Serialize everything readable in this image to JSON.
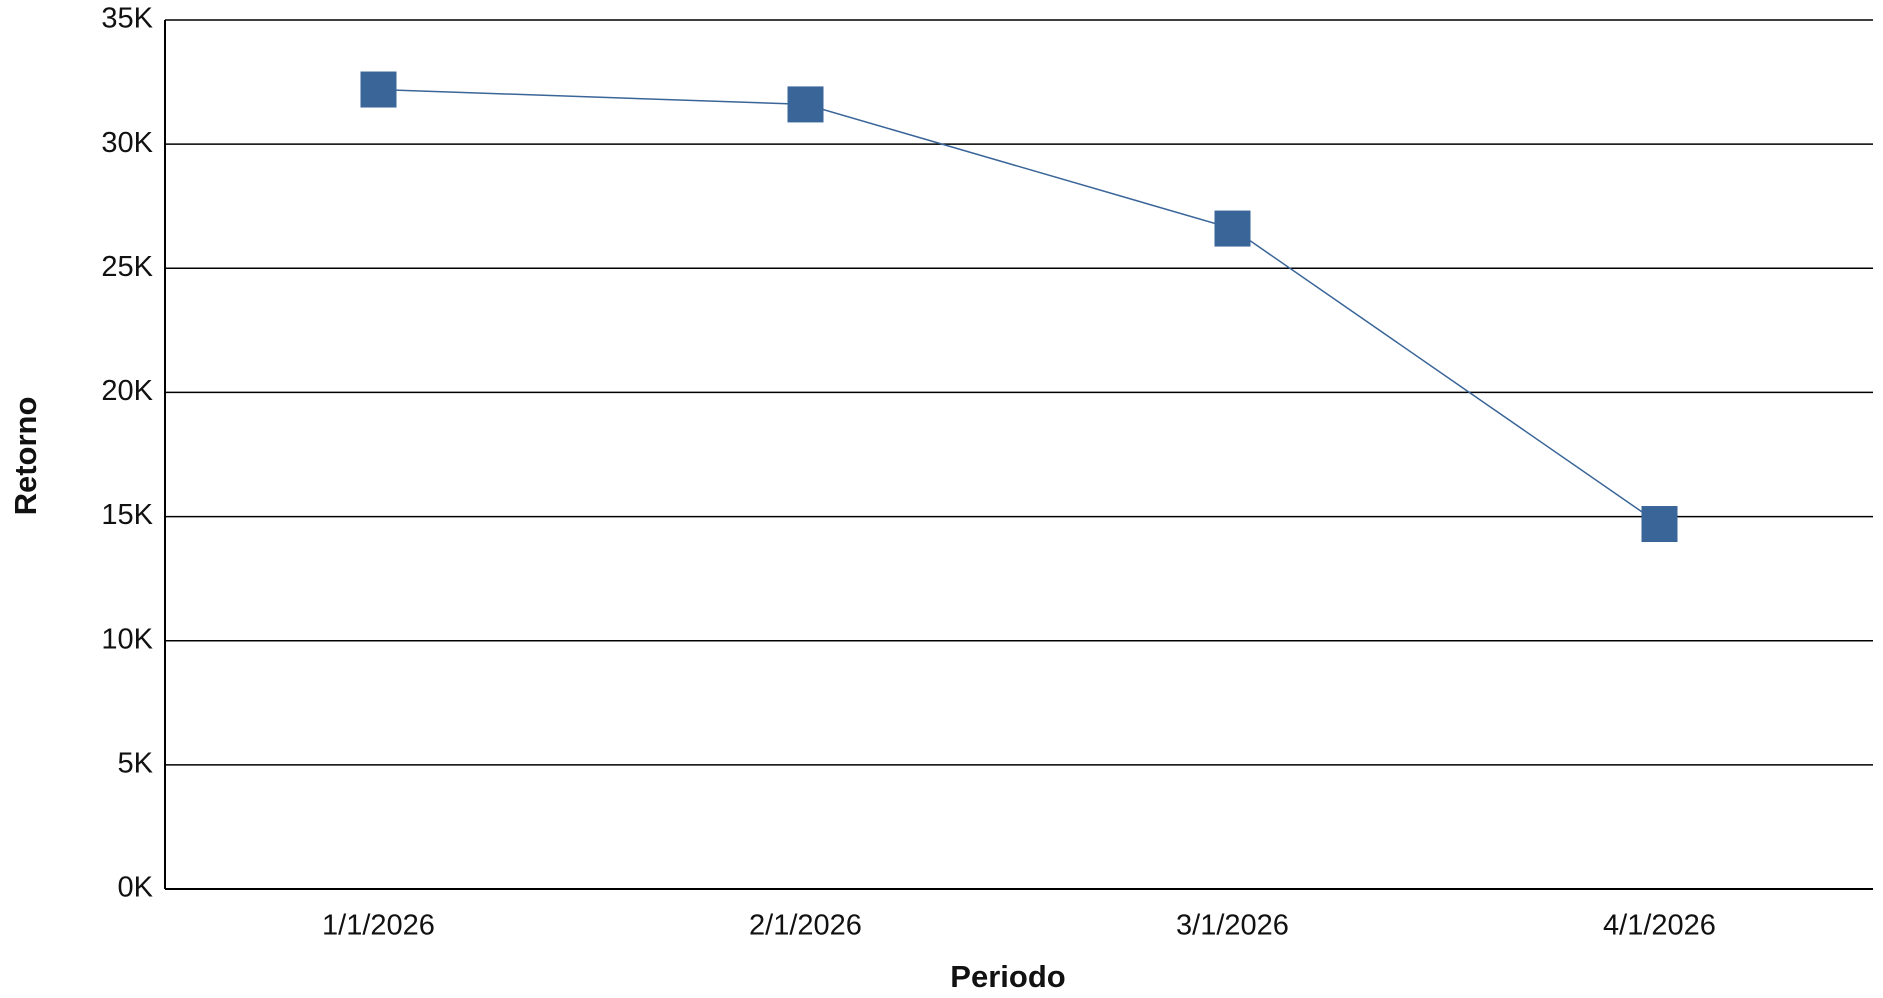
{
  "chart_data": {
    "type": "line",
    "x_label": "Periodo",
    "y_label": "Retorno",
    "categories": [
      "1/1/2026",
      "2/1/2026",
      "3/1/2026",
      "4/1/2026"
    ],
    "series": [
      {
        "color": "#3a6599",
        "values": [
          32200,
          31600,
          26600,
          14700
        ]
      }
    ],
    "ylim": [
      0,
      35000
    ],
    "yticks": [
      {
        "value": 0,
        "label": "0K"
      },
      {
        "value": 5000,
        "label": "5K"
      },
      {
        "value": 10000,
        "label": "10K"
      },
      {
        "value": 15000,
        "label": "15K"
      },
      {
        "value": 20000,
        "label": "20K"
      },
      {
        "value": 25000,
        "label": "25K"
      },
      {
        "value": 30000,
        "label": "30K"
      },
      {
        "value": 35000,
        "label": "35K"
      }
    ],
    "grid": true
  }
}
